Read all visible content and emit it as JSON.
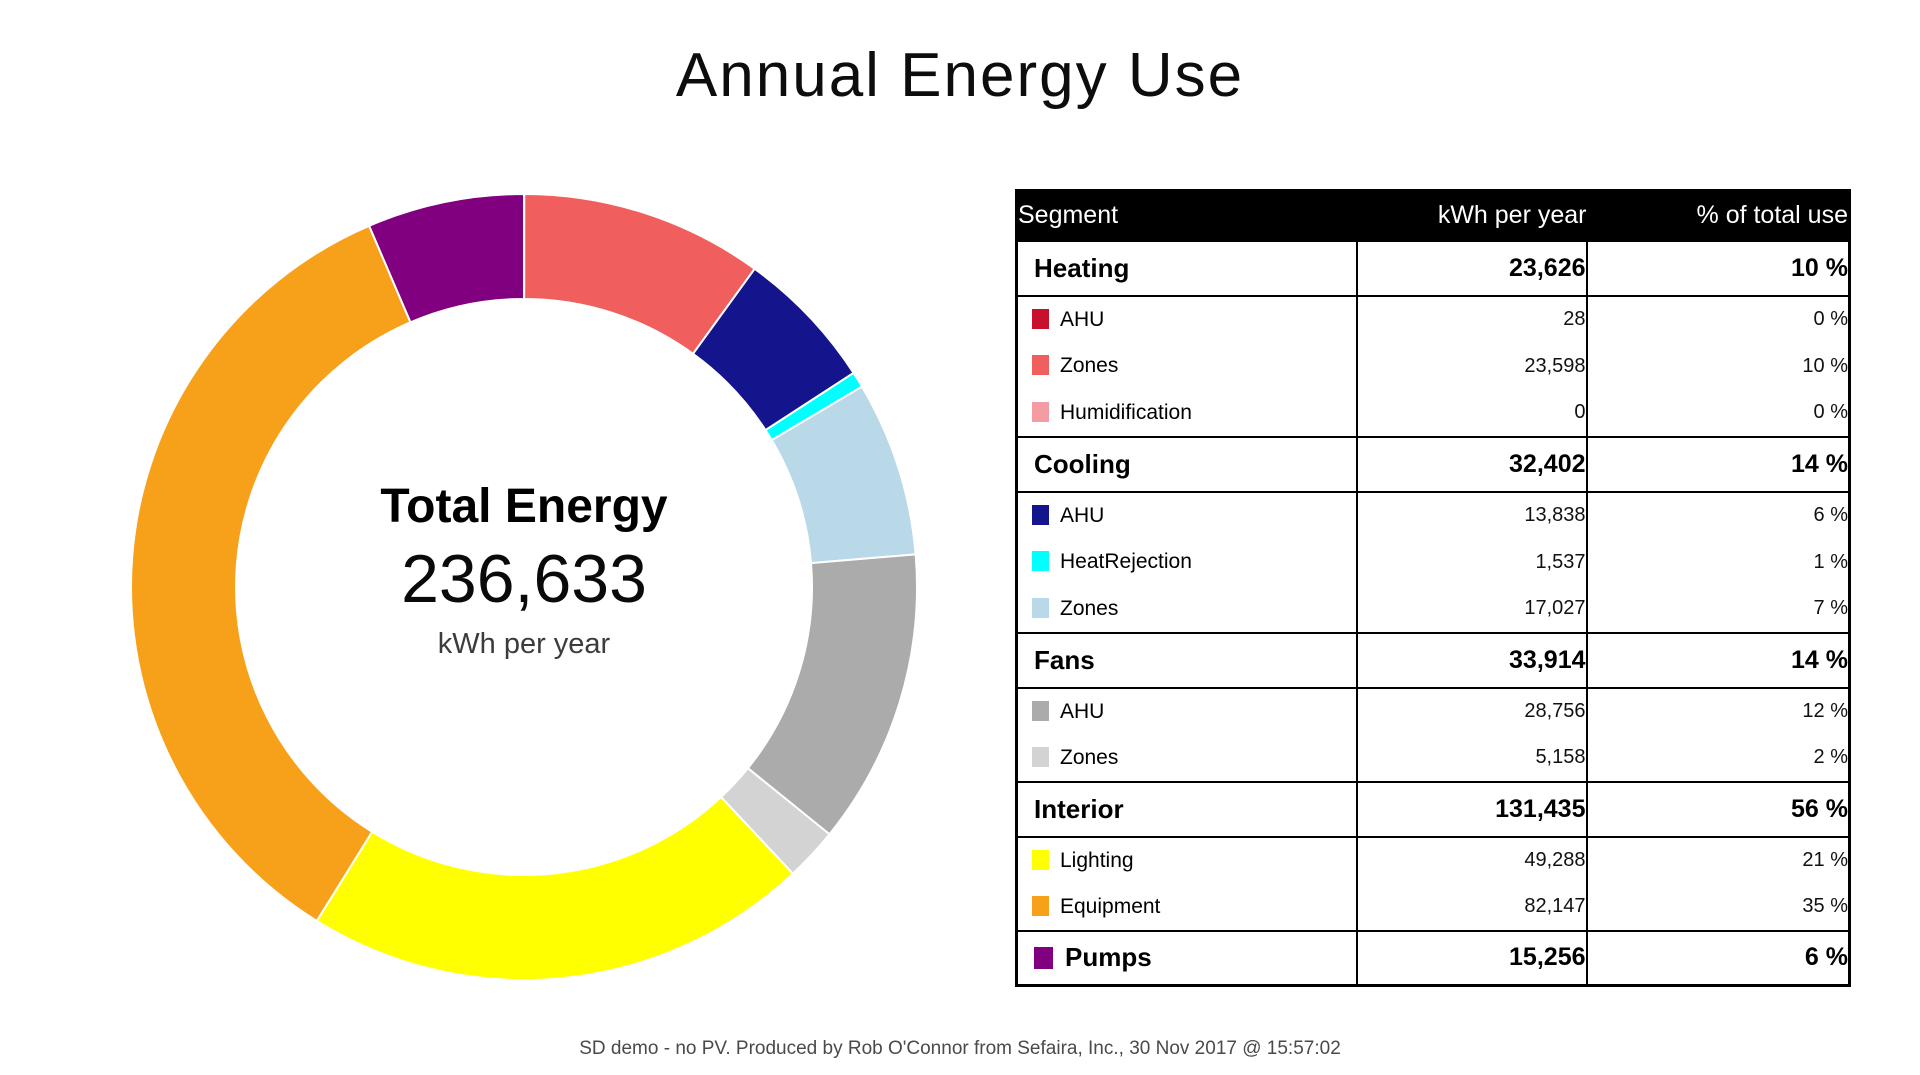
{
  "title": "Annual Energy Use",
  "footer": "SD demo - no PV. Produced by Rob O'Connor from Sefaira, Inc., 30 Nov 2017 @ 15:57:02",
  "donut": {
    "center_label": "Total Energy",
    "center_value": "236,633",
    "center_unit": "kWh per year"
  },
  "table": {
    "headers": [
      "Segment",
      "kWh per year",
      "% of total use"
    ],
    "rows": [
      {
        "type": "major",
        "label": "Heating",
        "kwh": "23,626",
        "pct": "10 %"
      },
      {
        "type": "sub",
        "label": "AHU",
        "color": "#C8102E",
        "kwh": "28",
        "pct": "0 %"
      },
      {
        "type": "sub",
        "label": "Zones",
        "color": "#F05E5E",
        "kwh": "23,598",
        "pct": "10 %"
      },
      {
        "type": "sub",
        "label": "Humidification",
        "color": "#F49BA3",
        "kwh": "0",
        "pct": "0 %"
      },
      {
        "type": "major",
        "label": "Cooling",
        "kwh": "32,402",
        "pct": "14 %"
      },
      {
        "type": "sub",
        "label": "AHU",
        "color": "#14148C",
        "kwh": "13,838",
        "pct": "6 %"
      },
      {
        "type": "sub",
        "label": "HeatRejection",
        "color": "#00FFFF",
        "kwh": "1,537",
        "pct": "1 %"
      },
      {
        "type": "sub",
        "label": "Zones",
        "color": "#B9D9E8",
        "kwh": "17,027",
        "pct": "7 %"
      },
      {
        "type": "major",
        "label": "Fans",
        "kwh": "33,914",
        "pct": "14 %"
      },
      {
        "type": "sub",
        "label": "AHU",
        "color": "#ABABAB",
        "kwh": "28,756",
        "pct": "12 %"
      },
      {
        "type": "sub",
        "label": "Zones",
        "color": "#D3D3D3",
        "kwh": "5,158",
        "pct": "2 %"
      },
      {
        "type": "major",
        "label": "Interior",
        "kwh": "131,435",
        "pct": "56 %"
      },
      {
        "type": "sub",
        "label": "Lighting",
        "color": "#FFFF00",
        "kwh": "49,288",
        "pct": "21 %"
      },
      {
        "type": "sub",
        "label": "Equipment",
        "color": "#F7A11B",
        "kwh": "82,147",
        "pct": "35 %"
      },
      {
        "type": "major",
        "label": "Pumps",
        "color": "#800080",
        "kwh": "15,256",
        "pct": "6 %"
      }
    ]
  },
  "chart_data": {
    "type": "pie",
    "subtype": "donut",
    "title": "Annual Energy Use",
    "center_label": "Total Energy",
    "total": 236633,
    "unit": "kWh per year",
    "start_angle_deg": 0,
    "direction": "clockwise",
    "inner_radius_ratio": 0.73,
    "segments": [
      {
        "name": "Heating AHU",
        "group": "Heating",
        "value": 28,
        "pct": 0,
        "color": "#C8102E"
      },
      {
        "name": "Heating Zones",
        "group": "Heating",
        "value": 23598,
        "pct": 10,
        "color": "#F05E5E"
      },
      {
        "name": "Humidification",
        "group": "Heating",
        "value": 0,
        "pct": 0,
        "color": "#F49BA3"
      },
      {
        "name": "Cooling AHU",
        "group": "Cooling",
        "value": 13838,
        "pct": 6,
        "color": "#14148C"
      },
      {
        "name": "HeatRejection",
        "group": "Cooling",
        "value": 1537,
        "pct": 1,
        "color": "#00FFFF"
      },
      {
        "name": "Cooling Zones",
        "group": "Cooling",
        "value": 17027,
        "pct": 7,
        "color": "#B9D9E8"
      },
      {
        "name": "Fans AHU",
        "group": "Fans",
        "value": 28756,
        "pct": 12,
        "color": "#ABABAB"
      },
      {
        "name": "Fans Zones",
        "group": "Fans",
        "value": 5158,
        "pct": 2,
        "color": "#D3D3D3"
      },
      {
        "name": "Lighting",
        "group": "Interior",
        "value": 49288,
        "pct": 21,
        "color": "#FFFF00"
      },
      {
        "name": "Equipment",
        "group": "Interior",
        "value": 82147,
        "pct": 35,
        "color": "#F7A11B"
      },
      {
        "name": "Pumps",
        "group": "Pumps",
        "value": 15256,
        "pct": 6,
        "color": "#800080"
      }
    ],
    "groups": [
      {
        "name": "Heating",
        "value": 23626,
        "pct": 10
      },
      {
        "name": "Cooling",
        "value": 32402,
        "pct": 14
      },
      {
        "name": "Fans",
        "value": 33914,
        "pct": 14
      },
      {
        "name": "Interior",
        "value": 131435,
        "pct": 56
      },
      {
        "name": "Pumps",
        "value": 15256,
        "pct": 6
      }
    ]
  }
}
